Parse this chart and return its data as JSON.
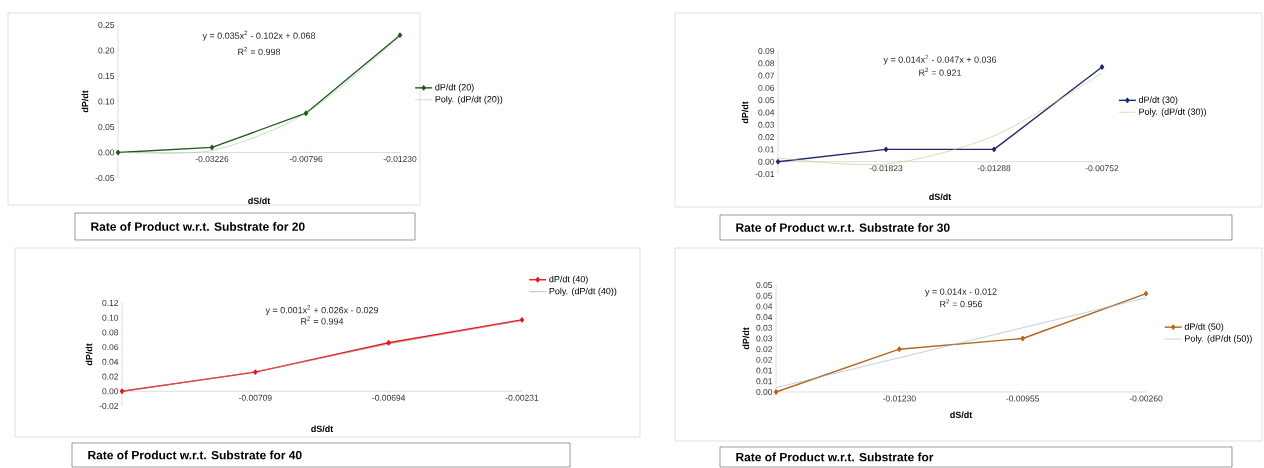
{
  "chart_data": [
    {
      "type": "line",
      "title": "Rate of Product w.r.t. Substrate for 20",
      "xlabel": "dS/dt",
      "ylabel": "dP/dt",
      "categories": [
        "0.00",
        "-0.03226",
        "-0.00796",
        "-0.01230"
      ],
      "series": [
        {
          "name": "dP/dt (20)",
          "color": "#1e5c1e",
          "marker": "diamond",
          "values": [
            0,
            0.01,
            0.077,
            0.23
          ]
        },
        {
          "name": "Poly. (dP/dt (20))",
          "color": "#a6c8a0",
          "marker": "none",
          "values": [
            0.001,
            0.004,
            0.077,
            0.228
          ]
        }
      ],
      "ylim": [
        -0.05,
        0.25
      ],
      "yticks": [
        {
          "value": -0.05,
          "label": "-0.05"
        },
        {
          "value": 0,
          "label": "0.00"
        },
        {
          "value": 0.05,
          "label": "0.05"
        },
        {
          "value": 0.1,
          "label": "0.10"
        },
        {
          "value": 0.15,
          "label": "0.15"
        },
        {
          "value": 0.2,
          "label": "0.20"
        },
        {
          "value": 0.25,
          "label": "0.25"
        }
      ],
      "annotations": [
        "y = 0.035x$^{2}$ - 0.102x + 0.068",
        "R$^{2}$ = 0.998"
      ],
      "legend": "right"
    },
    {
      "type": "line",
      "title": "Rate of Product w.r.t. Substrate for 30",
      "xlabel": "dS/dt",
      "ylabel": "dP/dt",
      "categories": [
        "0.00",
        "-0.01823",
        "-0.01288",
        "-0.00752"
      ],
      "series": [
        {
          "name": "dP/dt (30)",
          "color": "#1f2a6b",
          "marker": "diamond",
          "values": [
            0,
            0.01,
            0.01,
            0.077
          ]
        },
        {
          "name": "Poly. (dP/dt (30))",
          "color": "#b8c98c",
          "marker": "none",
          "values": [
            0.003,
            -0.002,
            0.021,
            0.072
          ]
        }
      ],
      "ylim": [
        -0.01,
        0.09
      ],
      "yticks": [
        {
          "value": -0.01,
          "label": "-0.01"
        },
        {
          "value": 0,
          "label": "0.00"
        },
        {
          "value": 0.01,
          "label": "0.01"
        },
        {
          "value": 0.02,
          "label": "0.02"
        },
        {
          "value": 0.03,
          "label": "0.03"
        },
        {
          "value": 0.04,
          "label": "0.04"
        },
        {
          "value": 0.05,
          "label": "0.05"
        },
        {
          "value": 0.06,
          "label": "0.06"
        },
        {
          "value": 0.07,
          "label": "0.07"
        },
        {
          "value": 0.08,
          "label": "0.08"
        },
        {
          "value": 0.09,
          "label": "0.09"
        }
      ],
      "annotations": [
        "y = 0.014x$^{2}$ - 0.047x + 0.036",
        "R$^{2}$ = 0.921"
      ],
      "legend": "right"
    },
    {
      "type": "line",
      "title": "Rate of Product w.r.t. Substrate for 40",
      "xlabel": "dS/dt",
      "ylabel": "dP/dt",
      "categories": [
        "0.00",
        "-0.00709",
        "-0.00694",
        "-0.00231"
      ],
      "series": [
        {
          "name": "dP/dt (40)",
          "color": "#e31a1c",
          "marker": "diamond",
          "values": [
            0,
            0.026,
            0.066,
            0.097
          ]
        },
        {
          "name": "Poly. (dP/dt (40))",
          "color": "#c08080",
          "marker": "none",
          "values": [
            0,
            0.027,
            0.064,
            0.096
          ]
        }
      ],
      "ylim": [
        -0.02,
        0.12
      ],
      "yticks": [
        {
          "value": -0.02,
          "label": "-0.02"
        },
        {
          "value": 0,
          "label": "0.00"
        },
        {
          "value": 0.02,
          "label": "0.02"
        },
        {
          "value": 0.04,
          "label": "0.04"
        },
        {
          "value": 0.06,
          "label": "0.06"
        },
        {
          "value": 0.08,
          "label": "0.08"
        },
        {
          "value": 0.1,
          "label": "0.10"
        },
        {
          "value": 0.12,
          "label": "0.12"
        }
      ],
      "annotations": [
        "y = 0.001x$^{2}$ + 0.026x - 0.029",
        "R$^{2}$ = 0.994"
      ],
      "legend": "top right"
    },
    {
      "type": "line",
      "title": "Rate of Product w.r.t. Substrate for",
      "xlabel": "dS/dt",
      "ylabel": "dP/dt",
      "categories": [
        "0.00",
        "-0.01230",
        "-0.00955",
        "-0.00260"
      ],
      "series": [
        {
          "name": "dP/dt (50)",
          "color": "#b5651d",
          "marker": "diamond",
          "values": [
            0,
            0.02,
            0.025,
            0.046
          ]
        },
        {
          "name": "Poly. (dP/dt (50))",
          "color": "#8fb4d8",
          "marker": "none",
          "values": [
            0.002,
            0.016,
            0.03,
            0.044
          ]
        }
      ],
      "ylim": [
        0,
        0.05
      ],
      "yticks": [
        {
          "value": 0,
          "label": "0.00"
        },
        {
          "value": 0.005,
          "label": "0.01"
        },
        {
          "value": 0.01,
          "label": "0.01"
        },
        {
          "value": 0.015,
          "label": "0.02"
        },
        {
          "value": 0.02,
          "label": "0.02"
        },
        {
          "value": 0.025,
          "label": "0.03"
        },
        {
          "value": 0.03,
          "label": "0.03"
        },
        {
          "value": 0.035,
          "label": "0.04"
        },
        {
          "value": 0.04,
          "label": "0.04"
        },
        {
          "value": 0.045,
          "label": "0.05"
        },
        {
          "value": 0.05,
          "label": "0.05"
        }
      ],
      "annotations": [
        "y = 0.014x - 0.012",
        "R$^{2}$ = 0.956"
      ],
      "legend": "right"
    }
  ]
}
